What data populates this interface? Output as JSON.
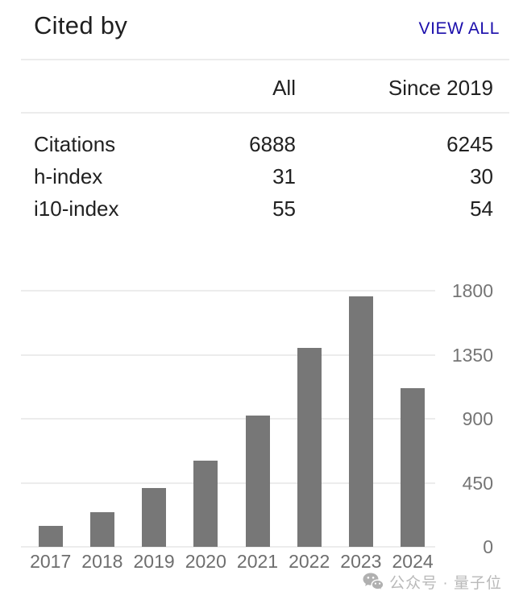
{
  "header": {
    "title": "Cited by",
    "view_all_label": "VIEW ALL"
  },
  "table": {
    "columns": [
      "",
      "All",
      "Since 2019"
    ],
    "rows": [
      {
        "label": "Citations",
        "all": "6888",
        "since": "6245"
      },
      {
        "label": "h-index",
        "all": "31",
        "since": "30"
      },
      {
        "label": "i10-index",
        "all": "55",
        "since": "54"
      }
    ]
  },
  "chart_data": {
    "type": "bar",
    "categories": [
      "2017",
      "2018",
      "2019",
      "2020",
      "2021",
      "2022",
      "2023",
      "2024"
    ],
    "values": [
      150,
      245,
      415,
      605,
      925,
      1400,
      1760,
      1115
    ],
    "title": "",
    "xlabel": "",
    "ylabel": "",
    "ylim": [
      0,
      1800
    ],
    "yticks": [
      0,
      450,
      900,
      1350,
      1800
    ],
    "grid": true,
    "legend_position": "none",
    "bar_color": "#777777",
    "gridline_color": "#ececec",
    "axis_label_color": "#757575"
  },
  "watermark": {
    "icon": "wechat-icon",
    "text": "公众号 · 量子位"
  },
  "colors": {
    "link": "#1a0dab",
    "text": "#212121",
    "divider": "#ececec"
  }
}
